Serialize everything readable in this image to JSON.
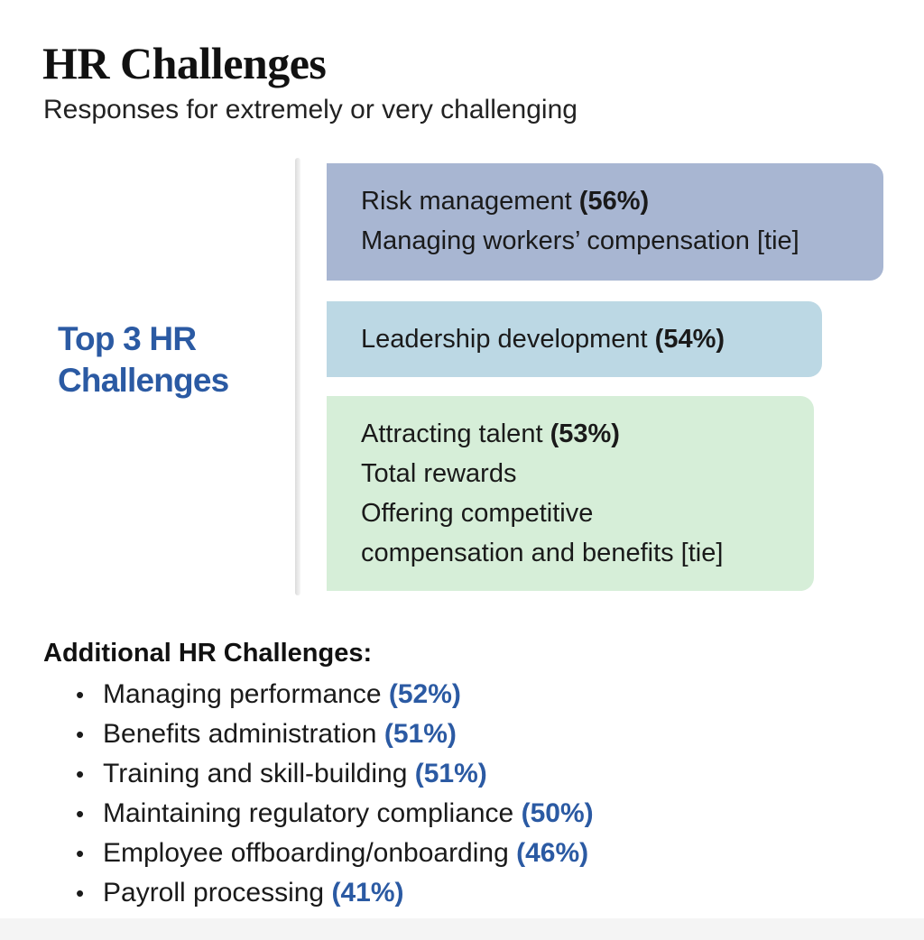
{
  "title": "HR Challenges",
  "subtitle": "Responses for extremely or very challenging",
  "top_label": "Top 3 HR Challenges",
  "colors": {
    "box1": "#a8b6d2",
    "box2": "#bcd8e4",
    "box3": "#d6eed8",
    "accent": "#2b5aa3"
  },
  "chart_data": {
    "type": "table",
    "top_challenges": [
      {
        "lines": [
          {
            "text": "Risk management ",
            "value": "(56%)"
          },
          {
            "text": "Managing workers’ compensation [tie]",
            "value": ""
          }
        ]
      },
      {
        "lines": [
          {
            "text": "Leadership development ",
            "value": "(54%)"
          }
        ]
      },
      {
        "lines": [
          {
            "text": "Attracting talent ",
            "value": "(53%)"
          },
          {
            "text": "Total rewards",
            "value": ""
          },
          {
            "text": "Offering competitive",
            "value": ""
          },
          {
            "text": "compensation and benefits [tie]",
            "value": ""
          }
        ]
      }
    ],
    "additional_heading": "Additional HR Challenges:",
    "bullet": "•",
    "additional_challenges": [
      {
        "label": "Managing performance ",
        "value": "(52%)"
      },
      {
        "label": "Benefits administration ",
        "value": "(51%)"
      },
      {
        "label": "Training and skill-building ",
        "value": "(51%)"
      },
      {
        "label": "Maintaining regulatory compliance ",
        "value": "(50%)"
      },
      {
        "label": "Employee offboarding/onboarding ",
        "value": "(46%)"
      },
      {
        "label": "Payroll processing ",
        "value": "(41%)"
      }
    ]
  }
}
